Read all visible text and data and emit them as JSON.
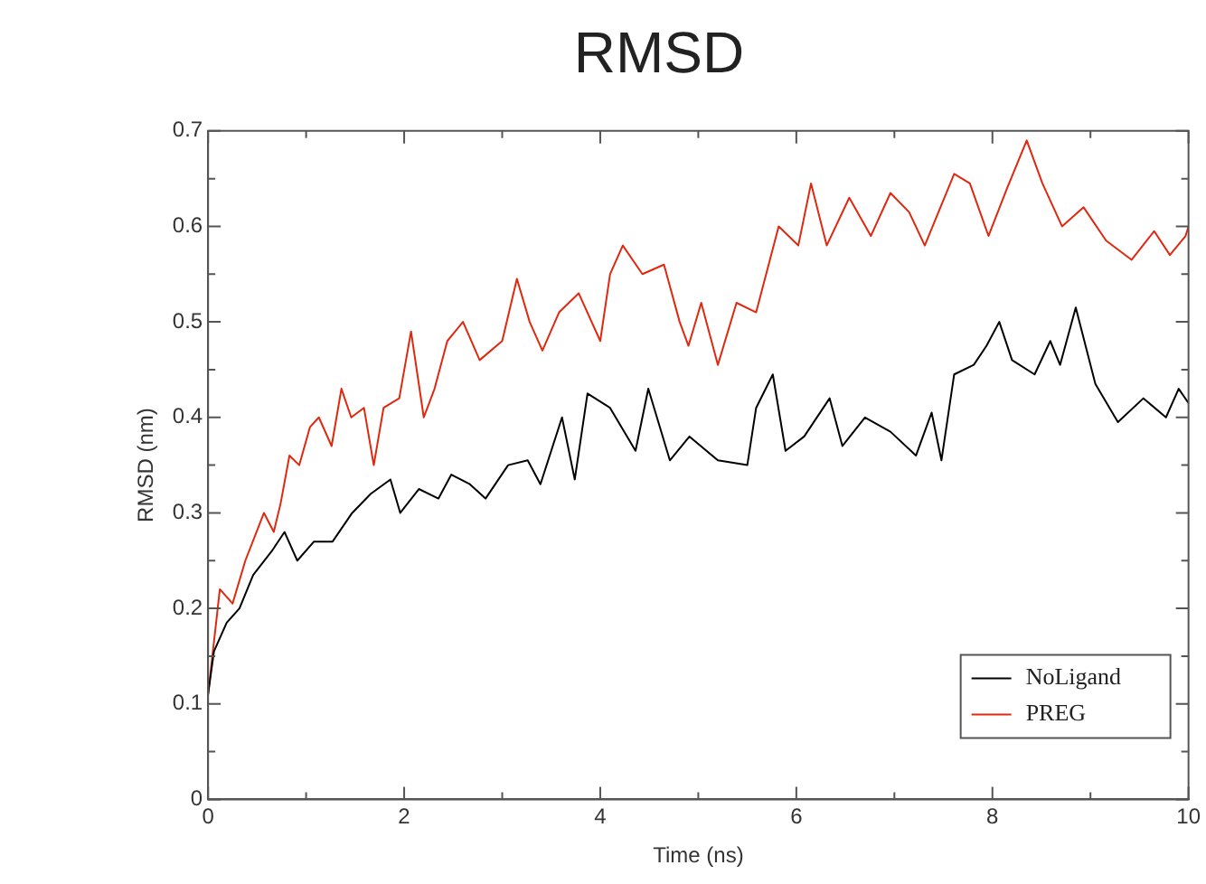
{
  "chart_data": {
    "type": "line",
    "title": "RMSD",
    "xlabel": "Time (ns)",
    "ylabel": "RMSD (nm)",
    "xlim": [
      0,
      10
    ],
    "xticks": [
      0,
      {
        "value": 1,
        "label": null
      },
      2,
      {
        "value": 3,
        "label": null
      },
      4,
      {
        "value": 5,
        "label": null
      },
      6,
      {
        "value": 7,
        "label": null
      },
      8,
      {
        "value": 9,
        "label": null
      },
      10
    ],
    "ylim": [
      0,
      0.7
    ],
    "yticks": [
      0,
      {
        "value": 0.05,
        "label": null
      },
      0.1,
      {
        "value": 0.15,
        "label": null
      },
      0.2,
      {
        "value": 0.25,
        "label": null
      },
      0.3,
      {
        "value": 0.35,
        "label": null
      },
      0.4,
      {
        "value": 0.45,
        "label": null
      },
      0.5,
      {
        "value": 0.55,
        "label": null
      },
      0.6,
      {
        "value": 0.65,
        "label": null
      },
      0.7
    ],
    "grid": false,
    "legend": "bottom right",
    "marker": "none",
    "line_style": "solid",
    "series": [
      {
        "name": "NoLigand",
        "color": "#000000",
        "x": [
          0,
          0.06,
          0.19,
          0.32,
          0.46,
          0.65,
          0.78,
          0.91,
          1.08,
          1.27,
          1.47,
          1.66,
          1.86,
          1.96,
          2.15,
          2.35,
          2.48,
          2.67,
          2.83,
          3.06,
          3.26,
          3.39,
          3.61,
          3.74,
          3.87,
          4.1,
          4.36,
          4.49,
          4.71,
          4.91,
          5.2,
          5.5,
          5.59,
          5.76,
          5.89,
          6.08,
          6.34,
          6.47,
          6.7,
          6.96,
          7.22,
          7.38,
          7.48,
          7.61,
          7.81,
          7.94,
          8.07,
          8.2,
          8.43,
          8.59,
          8.69,
          8.85,
          9.05,
          9.28,
          9.54,
          9.77,
          9.9,
          10
        ],
        "values": [
          0.11,
          0.155,
          0.185,
          0.2,
          0.235,
          0.26,
          0.28,
          0.25,
          0.27,
          0.27,
          0.3,
          0.32,
          0.335,
          0.3,
          0.325,
          0.315,
          0.34,
          0.33,
          0.315,
          0.35,
          0.355,
          0.33,
          0.4,
          0.335,
          0.425,
          0.41,
          0.365,
          0.43,
          0.355,
          0.38,
          0.355,
          0.35,
          0.41,
          0.445,
          0.365,
          0.38,
          0.42,
          0.37,
          0.4,
          0.385,
          0.36,
          0.405,
          0.355,
          0.445,
          0.455,
          0.475,
          0.5,
          0.46,
          0.445,
          0.48,
          0.455,
          0.515,
          0.435,
          0.395,
          0.42,
          0.4,
          0.43,
          0.415
        ]
      },
      {
        "name": "PREG",
        "color": "#e0280f",
        "x": [
          0,
          0.12,
          0.25,
          0.38,
          0.57,
          0.67,
          0.74,
          0.83,
          0.93,
          1.04,
          1.13,
          1.26,
          1.36,
          1.46,
          1.59,
          1.69,
          1.79,
          1.95,
          2.07,
          2.2,
          2.31,
          2.44,
          2.6,
          2.77,
          3,
          3.15,
          3.28,
          3.41,
          3.58,
          3.78,
          4,
          4.1,
          4.23,
          4.43,
          4.65,
          4.81,
          4.9,
          5.03,
          5.2,
          5.39,
          5.59,
          5.82,
          6.02,
          6.15,
          6.31,
          6.54,
          6.76,
          6.96,
          7.15,
          7.31,
          7.61,
          7.77,
          7.96,
          8.15,
          8.35,
          8.51,
          8.71,
          8.93,
          9.16,
          9.42,
          9.65,
          9.81,
          9.97,
          10
        ],
        "values": [
          0.11,
          0.22,
          0.205,
          0.25,
          0.3,
          0.28,
          0.31,
          0.36,
          0.35,
          0.39,
          0.4,
          0.37,
          0.43,
          0.4,
          0.41,
          0.35,
          0.41,
          0.42,
          0.49,
          0.4,
          0.43,
          0.48,
          0.5,
          0.46,
          0.48,
          0.545,
          0.5,
          0.47,
          0.51,
          0.53,
          0.48,
          0.55,
          0.58,
          0.55,
          0.56,
          0.5,
          0.475,
          0.52,
          0.455,
          0.52,
          0.51,
          0.6,
          0.58,
          0.645,
          0.58,
          0.63,
          0.59,
          0.635,
          0.615,
          0.58,
          0.655,
          0.645,
          0.59,
          0.64,
          0.69,
          0.645,
          0.6,
          0.62,
          0.585,
          0.565,
          0.595,
          0.57,
          0.59,
          0.6
        ]
      }
    ]
  }
}
